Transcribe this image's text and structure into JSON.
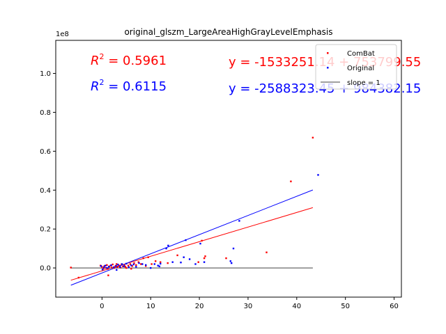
{
  "chart_data": {
    "type": "scatter",
    "title": "original_glszm_LargeAreaHighGrayLevelEmphasis",
    "xlabel": "",
    "ylabel": "",
    "y_multiplier_label": "1e8",
    "xlim": [
      -9.5,
      61.5
    ],
    "ylim": [
      -0.15,
      1.17
    ],
    "x_ticks": [
      0,
      10,
      20,
      30,
      40,
      50,
      60
    ],
    "y_ticks": [
      0.0,
      0.2,
      0.4,
      0.6,
      0.8,
      1.0
    ],
    "x_tick_labels": [
      "0",
      "10",
      "20",
      "30",
      "40",
      "50",
      "60"
    ],
    "y_tick_labels": [
      "0.0",
      "0.2",
      "0.4",
      "0.6",
      "0.8",
      "1.0"
    ],
    "grid": false,
    "legend_position": "top-right",
    "legend": [
      {
        "label": "ComBat",
        "color": "#ff0000",
        "kind": "point"
      },
      {
        "label": "Original",
        "color": "#0000ff",
        "kind": "point"
      },
      {
        "label": "slope = 1",
        "color": "#808080",
        "kind": "line"
      }
    ],
    "annotations": {
      "combat_r2": "R^2 = 0.5961",
      "original_r2": "R^2 = 0.6115",
      "combat_eq": "y = -1533251.14 + 753799.55",
      "original_eq": "y = -2588323.45 + 984382.15"
    },
    "series": [
      {
        "name": "ComBat",
        "color": "#ff0000",
        "points": [
          [
            -6.4,
            0.002
          ],
          [
            -4.8,
            -0.05
          ],
          [
            -0.3,
            0.012
          ],
          [
            0.0,
            0.005
          ],
          [
            0.3,
            -0.004
          ],
          [
            0.5,
            0.01
          ],
          [
            0.8,
            0.0
          ],
          [
            1.0,
            0.015
          ],
          [
            1.2,
            -0.005
          ],
          [
            1.5,
            0.008
          ],
          [
            1.8,
            0.012
          ],
          [
            2.0,
            0.002
          ],
          [
            2.2,
            0.018
          ],
          [
            2.5,
            0.0
          ],
          [
            2.8,
            0.01
          ],
          [
            3.0,
            0.02
          ],
          [
            3.2,
            0.005
          ],
          [
            3.5,
            0.012
          ],
          [
            3.8,
            0.002
          ],
          [
            4.0,
            0.018
          ],
          [
            4.3,
            0.008
          ],
          [
            4.6,
            0.015
          ],
          [
            5.0,
            0.0
          ],
          [
            5.4,
            0.012
          ],
          [
            5.8,
            0.02
          ],
          [
            6.2,
            0.01
          ],
          [
            6.6,
            0.025
          ],
          [
            7.0,
            0.015
          ],
          [
            7.5,
            0.03
          ],
          [
            8.0,
            0.02
          ],
          [
            8.5,
            0.05
          ],
          [
            9.0,
            0.01
          ],
          [
            9.5,
            0.055
          ],
          [
            10.2,
            0.02
          ],
          [
            11.0,
            0.035
          ],
          [
            12.0,
            0.03
          ],
          [
            13.5,
            0.025
          ],
          [
            15.5,
            0.065
          ],
          [
            19.8,
            0.03
          ],
          [
            20.5,
            0.14
          ],
          [
            21.0,
            0.05
          ],
          [
            21.2,
            0.06
          ],
          [
            25.5,
            0.05
          ],
          [
            33.8,
            0.08
          ],
          [
            38.8,
            0.445
          ],
          [
            43.3,
            0.67
          ],
          [
            1.3,
            -0.038
          ],
          [
            2.6,
            0.005
          ],
          [
            4.8,
            0.006
          ],
          [
            6.0,
            -0.004
          ]
        ]
      },
      {
        "name": "Original",
        "color": "#0000ff",
        "points": [
          [
            -0.2,
            0.01
          ],
          [
            0.1,
            -0.008
          ],
          [
            0.4,
            0.004
          ],
          [
            0.7,
            0.012
          ],
          [
            1.0,
            0.0
          ],
          [
            1.4,
            0.006
          ],
          [
            1.9,
            0.014
          ],
          [
            2.4,
            0.003
          ],
          [
            2.9,
            0.011
          ],
          [
            3.3,
            0.017
          ],
          [
            3.7,
            0.005
          ],
          [
            4.1,
            0.02
          ],
          [
            4.5,
            0.009
          ],
          [
            5.0,
            0.022
          ],
          [
            5.5,
            0.004
          ],
          [
            6.0,
            0.013
          ],
          [
            6.5,
            0.018
          ],
          [
            7.0,
            0.006
          ],
          [
            7.6,
            0.025
          ],
          [
            8.3,
            0.02
          ],
          [
            9.0,
            0.015
          ],
          [
            10.0,
            0.0
          ],
          [
            10.8,
            0.02
          ],
          [
            11.5,
            0.012
          ],
          [
            12.0,
            0.022
          ],
          [
            13.2,
            0.1
          ],
          [
            13.6,
            0.115
          ],
          [
            14.5,
            0.03
          ],
          [
            16.2,
            0.028
          ],
          [
            16.8,
            0.055
          ],
          [
            17.2,
            0.143
          ],
          [
            18.0,
            0.045
          ],
          [
            19.2,
            0.02
          ],
          [
            20.2,
            0.125
          ],
          [
            21.0,
            0.03
          ],
          [
            26.4,
            0.035
          ],
          [
            26.6,
            0.025
          ],
          [
            27.0,
            0.1
          ],
          [
            28.2,
            0.242
          ],
          [
            44.4,
            0.478
          ],
          [
            11.8,
            0.008
          ],
          [
            3.0,
            -0.01
          ]
        ]
      }
    ],
    "fit_lines": [
      {
        "name": "ComBat fit",
        "color": "#ff0000",
        "x": [
          -6.4,
          43.3
        ],
        "y": [
          -0.063,
          0.31
        ]
      },
      {
        "name": "Original fit",
        "color": "#0000ff",
        "x": [
          -6.4,
          43.3
        ],
        "y": [
          -0.089,
          0.401
        ]
      },
      {
        "name": "slope = 1",
        "color": "#808080",
        "x": [
          -6.4,
          43.3
        ],
        "y": [
          0.0,
          0.0
        ]
      }
    ]
  }
}
